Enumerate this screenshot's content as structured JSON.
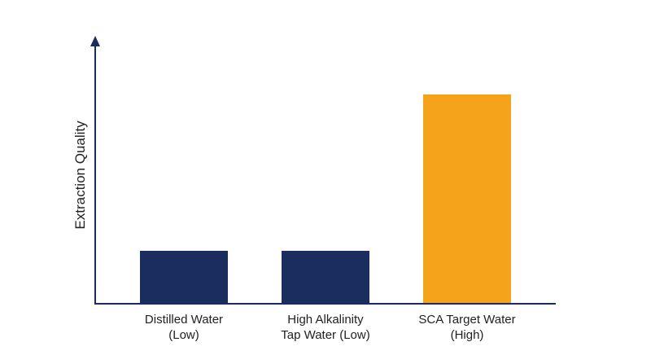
{
  "chart_data": {
    "type": "bar",
    "title": "",
    "xlabel": "",
    "ylabel": "Extraction Quality",
    "categories": [
      [
        "Distilled Water",
        "(Low)"
      ],
      [
        "High Alkalinity",
        "Tap Water (Low)"
      ],
      [
        "SCA Target Water",
        "(High)"
      ]
    ],
    "values": [
      1,
      1,
      4
    ],
    "ylim": [
      0,
      5
    ],
    "grid": false,
    "legend": "none",
    "bar_colors": [
      "#1b2d5e",
      "#1b2d5e",
      "#f5a31a"
    ],
    "axis_color": "#1b2d5e"
  }
}
